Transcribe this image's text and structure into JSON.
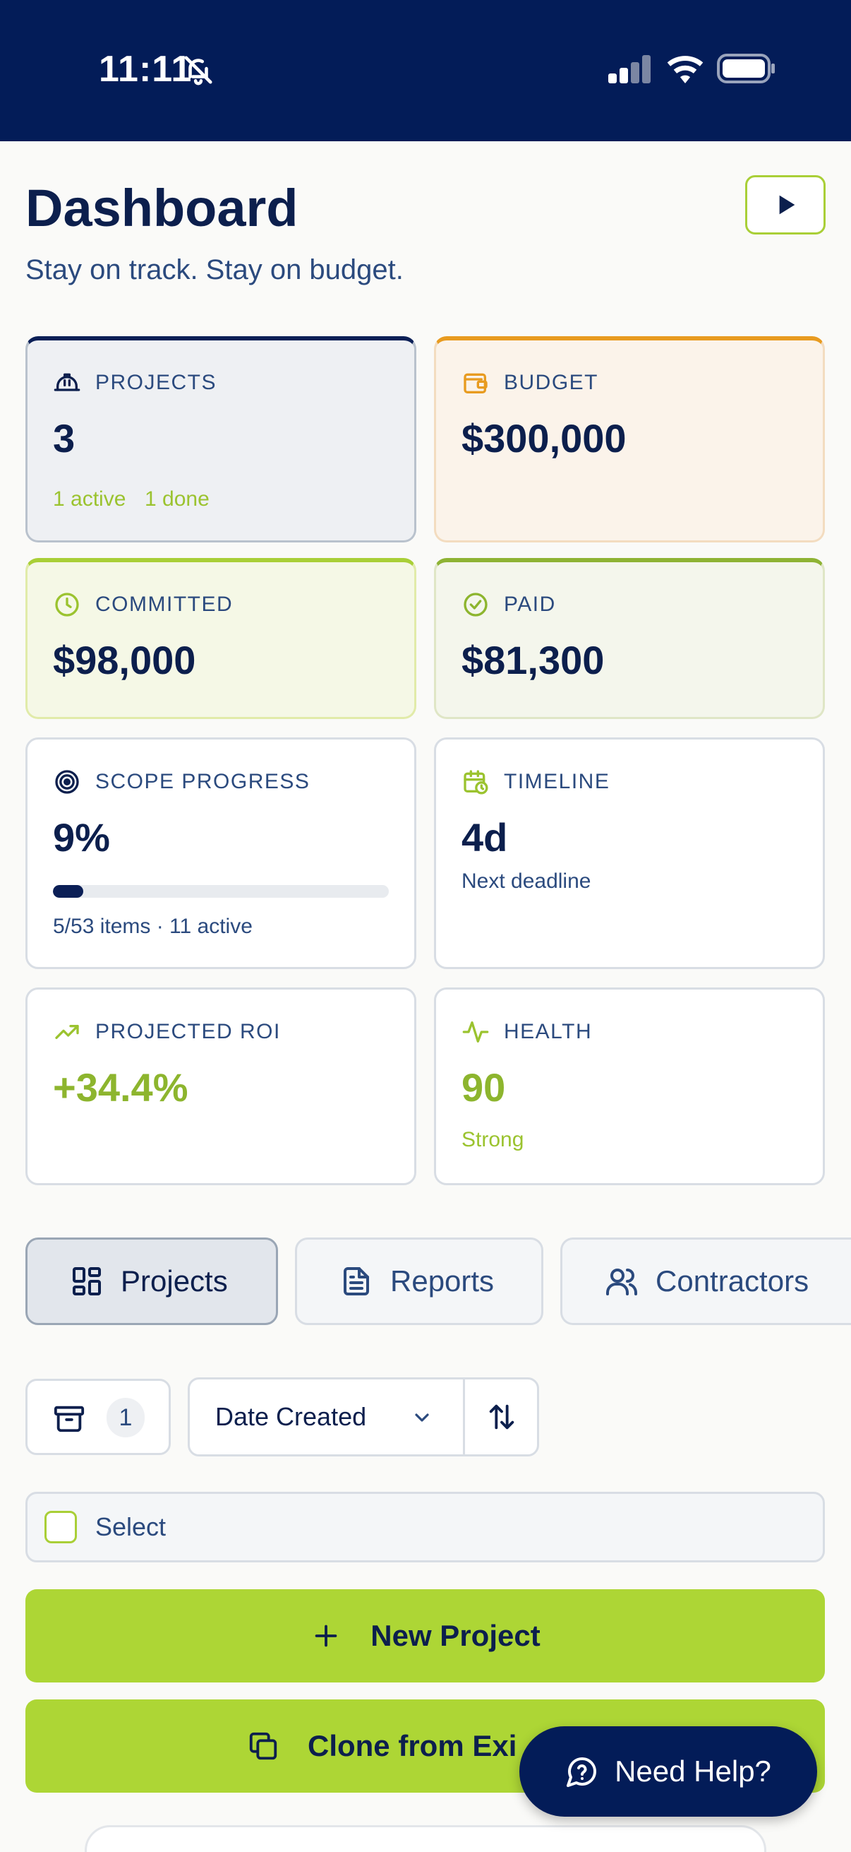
{
  "status_bar": {
    "time": "11:11",
    "icons": [
      "bell-off-icon",
      "signal-icon",
      "wifi-icon",
      "battery-icon"
    ]
  },
  "header": {
    "title": "Dashboard",
    "subtitle": "Stay on track. Stay on budget.",
    "play_icon": "play-icon"
  },
  "cards": {
    "projects": {
      "label": "PROJECTS",
      "value": "3",
      "active": "1 active",
      "done": "1 done",
      "icon": "hard-hat-icon"
    },
    "budget": {
      "label": "BUDGET",
      "value": "$300,000",
      "icon": "wallet-icon"
    },
    "committed": {
      "label": "COMMITTED",
      "value": "$98,000",
      "icon": "clock-icon"
    },
    "paid": {
      "label": "PAID",
      "value": "$81,300",
      "icon": "check-circle-icon"
    },
    "scope": {
      "label": "SCOPE PROGRESS",
      "value": "9%",
      "progress_fraction": 0.09,
      "note": "5/53 items · 11 active",
      "icon": "target-icon"
    },
    "timeline": {
      "label": "TIMELINE",
      "value": "4d",
      "note": "Next deadline",
      "icon": "calendar-clock-icon"
    },
    "roi": {
      "label": "PROJECTED ROI",
      "value": "+34.4%",
      "icon": "trending-up-icon"
    },
    "health": {
      "label": "HEALTH",
      "value": "90",
      "note": "Strong",
      "icon": "activity-icon"
    }
  },
  "tabs": [
    {
      "label": "Projects",
      "icon": "grid-icon",
      "active": true
    },
    {
      "label": "Reports",
      "icon": "file-text-icon",
      "active": false
    },
    {
      "label": "Contractors",
      "icon": "users-icon",
      "active": false
    }
  ],
  "toolbar": {
    "archive_count": "1",
    "sort_label": "Date Created",
    "archive_icon": "archive-icon",
    "sort_icon": "sort-arrows-icon"
  },
  "select": {
    "label": "Select"
  },
  "actions": {
    "new_project": "New Project",
    "clone": "Clone from Exi"
  },
  "help": {
    "label": "Need Help?"
  },
  "colors": {
    "navy": "#031c58",
    "lime": "#add635",
    "orange": "#e89b20",
    "green_text": "#8db52e"
  }
}
